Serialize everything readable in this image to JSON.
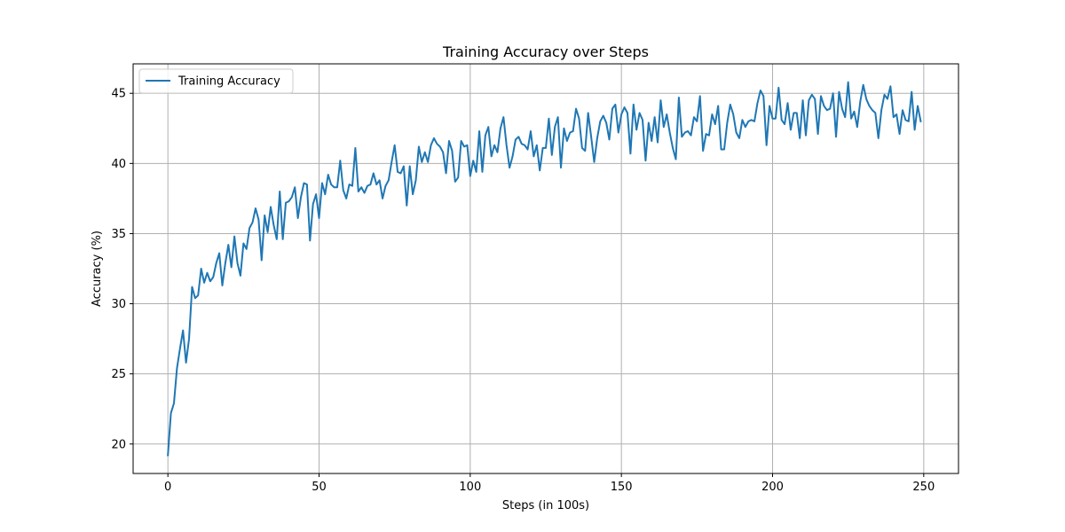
{
  "chart_data": {
    "type": "line",
    "title": "Training Accuracy over Steps",
    "xlabel": "Steps (in 100s)",
    "ylabel": "Accuracy (%)",
    "xlim": [
      -11.5,
      261.5
    ],
    "ylim": [
      17.9,
      47.1
    ],
    "xticks": [
      0,
      50,
      100,
      150,
      200,
      250
    ],
    "yticks": [
      20,
      25,
      30,
      35,
      40,
      45
    ],
    "grid": true,
    "legend_position": "upper left",
    "series": [
      {
        "name": "Training Accuracy",
        "color": "#1f77b4",
        "x_start": 0,
        "x_step": 1,
        "y": [
          19.2,
          22.2,
          22.9,
          25.4,
          26.8,
          28.1,
          25.8,
          27.5,
          31.2,
          30.4,
          30.6,
          32.5,
          31.5,
          32.2,
          31.6,
          31.9,
          32.9,
          33.6,
          31.3,
          32.9,
          34.2,
          32.6,
          34.8,
          32.9,
          32.0,
          34.3,
          33.9,
          35.4,
          35.8,
          36.8,
          36.0,
          33.1,
          36.3,
          35.1,
          36.9,
          35.6,
          34.6,
          38.0,
          34.6,
          37.2,
          37.3,
          37.6,
          38.3,
          36.1,
          37.6,
          38.6,
          38.5,
          34.5,
          37.1,
          37.8,
          36.1,
          38.6,
          37.8,
          39.2,
          38.5,
          38.3,
          38.3,
          40.2,
          38.1,
          37.5,
          38.5,
          38.4,
          41.1,
          38.0,
          38.3,
          37.9,
          38.4,
          38.5,
          39.3,
          38.5,
          38.8,
          37.5,
          38.4,
          38.8,
          40.1,
          41.3,
          39.4,
          39.3,
          39.8,
          37.0,
          39.8,
          37.8,
          38.8,
          41.2,
          40.1,
          40.8,
          40.1,
          41.3,
          41.8,
          41.4,
          41.2,
          40.8,
          39.3,
          41.6,
          40.9,
          38.7,
          39.0,
          41.6,
          41.2,
          41.3,
          39.1,
          40.2,
          39.4,
          42.3,
          39.4,
          42.0,
          42.6,
          40.5,
          41.3,
          40.8,
          42.5,
          43.3,
          41.3,
          39.7,
          40.5,
          41.7,
          41.9,
          41.4,
          41.3,
          41.0,
          42.3,
          40.5,
          41.3,
          39.5,
          41.1,
          41.1,
          43.2,
          40.6,
          42.6,
          43.3,
          39.7,
          42.5,
          41.6,
          42.2,
          42.3,
          43.9,
          43.2,
          41.1,
          40.9,
          43.6,
          41.9,
          40.1,
          41.8,
          43.0,
          43.4,
          42.9,
          41.7,
          43.9,
          44.2,
          42.2,
          43.5,
          44.0,
          43.6,
          40.7,
          44.2,
          42.4,
          43.6,
          43.1,
          40.2,
          42.9,
          41.6,
          43.3,
          41.5,
          44.5,
          42.6,
          43.5,
          42.2,
          41.1,
          40.3,
          44.7,
          41.9,
          42.2,
          42.3,
          42.0,
          43.3,
          43.0,
          44.8,
          40.9,
          42.1,
          42.0,
          43.5,
          42.8,
          44.1,
          41.0,
          41.0,
          42.9,
          44.2,
          43.5,
          42.2,
          41.8,
          43.1,
          42.6,
          43.0,
          43.1,
          43.0,
          44.3,
          45.2,
          44.8,
          41.3,
          44.1,
          43.2,
          43.2,
          45.4,
          43.1,
          42.8,
          44.3,
          42.4,
          43.6,
          43.6,
          41.8,
          44.5,
          42.0,
          44.5,
          44.9,
          44.6,
          42.1,
          44.8,
          44.1,
          43.8,
          43.9,
          45.0,
          41.9,
          45.1,
          43.9,
          43.3,
          45.8,
          43.2,
          43.7,
          42.6,
          44.4,
          45.6,
          44.6,
          44.1,
          43.8,
          43.6,
          41.8,
          43.8,
          44.9,
          44.6,
          45.5,
          43.3,
          43.5,
          42.1,
          43.8,
          43.1,
          43.0,
          45.1,
          42.4,
          44.1,
          43.0
        ]
      }
    ]
  }
}
